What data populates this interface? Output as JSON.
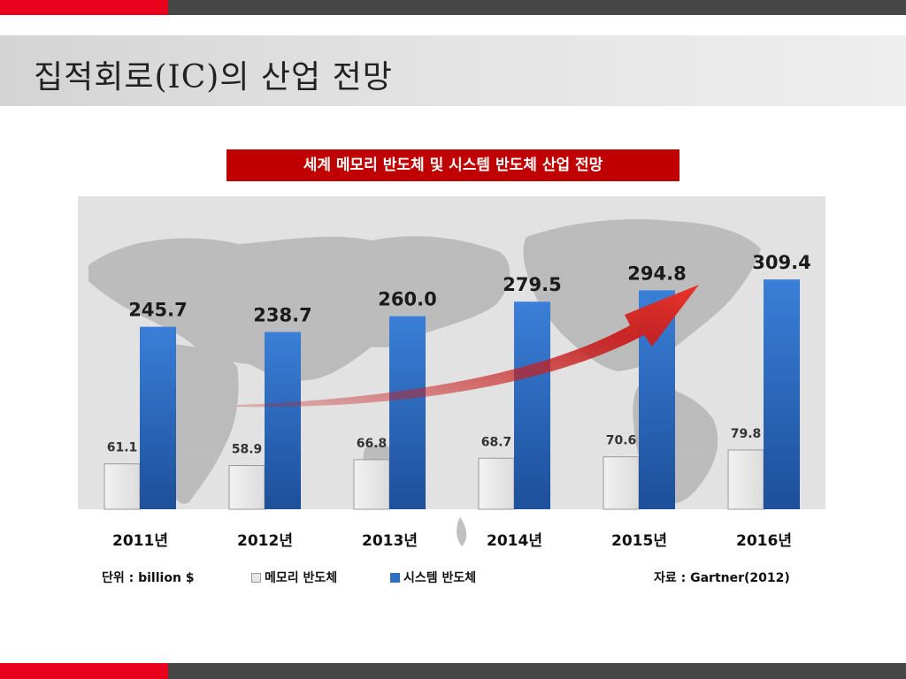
{
  "page": {
    "title": "집적회로(IC)의 산업 전망"
  },
  "chart_title": "세계 메모리 반도체 및 시스템 반도체 산업 전망",
  "unit_label": "단위 : billion $",
  "source_label": "자료 : Gartner(2012)",
  "colors": {
    "accent_red": "#e8001c",
    "dark_gray": "#474747",
    "chart_title_bg": "#c00000",
    "memory_bar": "#e6e6e6",
    "system_bar": "#2e6fc4",
    "trend_arrow": "#c81e1e"
  },
  "chart_data": {
    "type": "bar",
    "categories": [
      "2011년",
      "2012년",
      "2013년",
      "2014년",
      "2015년",
      "2016년"
    ],
    "series": [
      {
        "name": "메모리 반도체",
        "values": [
          61.1,
          58.9,
          66.8,
          68.7,
          70.6,
          79.8
        ]
      },
      {
        "name": "시스템 반도체",
        "values": [
          245.7,
          238.7,
          260.0,
          279.5,
          294.8,
          309.4
        ]
      }
    ],
    "title": "세계 메모리 반도체 및 시스템 반도체 산업 전망",
    "xlabel": "",
    "ylabel": "",
    "unit": "billion $",
    "legend_position": "bottom",
    "grid": false,
    "background_image": "world-map",
    "annotation": "red trend arrow rising toward 2016"
  }
}
